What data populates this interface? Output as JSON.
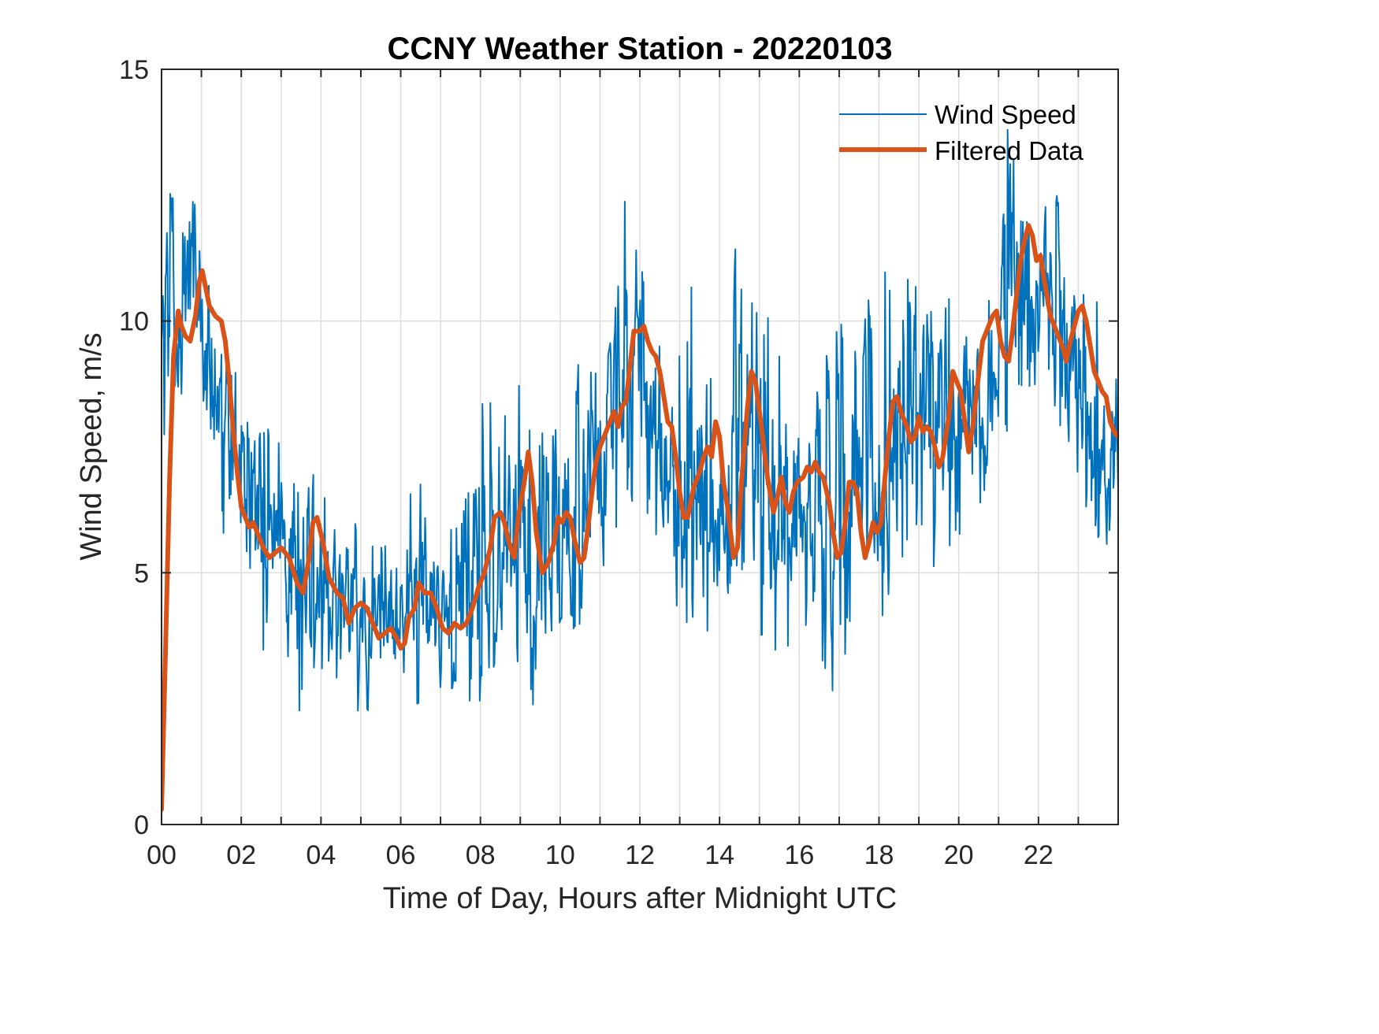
{
  "chart_data": {
    "type": "line",
    "title": "CCNY Weather Station - 20220103",
    "xlabel": "Time of Day, Hours after Midnight UTC",
    "ylabel": "Wind Speed, m/s",
    "xlim": [
      0,
      24
    ],
    "ylim": [
      0,
      15
    ],
    "xticks": [
      0,
      2,
      4,
      6,
      8,
      10,
      12,
      14,
      16,
      18,
      20,
      22
    ],
    "xtick_labels": [
      "00",
      "02",
      "04",
      "06",
      "08",
      "10",
      "12",
      "14",
      "16",
      "18",
      "20",
      "22"
    ],
    "x_minor_grid_hours": [
      1,
      3,
      5,
      7,
      9,
      11,
      13,
      15,
      17,
      19,
      21,
      23
    ],
    "yticks": [
      0,
      5,
      10,
      15
    ],
    "ytick_labels": [
      "0",
      "5",
      "10",
      "15"
    ],
    "grid": true,
    "box": true,
    "legend": {
      "placement": "top-right",
      "boxed": false
    },
    "series": [
      {
        "name": "Wind Speed",
        "color": "#0072BD",
        "style": "thin",
        "x_step_hours": 0.0167,
        "envelope": [
          {
            "x": 0.0,
            "lo": 7.0,
            "hi": 11.8
          },
          {
            "x": 0.2,
            "lo": 8.5,
            "hi": 13.1
          },
          {
            "x": 0.5,
            "lo": 6.8,
            "hi": 12.5
          },
          {
            "x": 0.9,
            "lo": 8.5,
            "hi": 13.4
          },
          {
            "x": 1.3,
            "lo": 7.5,
            "hi": 11.6
          },
          {
            "x": 1.6,
            "lo": 5.2,
            "hi": 10.2
          },
          {
            "x": 2.0,
            "lo": 4.2,
            "hi": 8.5
          },
          {
            "x": 2.5,
            "lo": 3.4,
            "hi": 8.0
          },
          {
            "x": 3.0,
            "lo": 3.5,
            "hi": 7.6
          },
          {
            "x": 3.4,
            "lo": 1.5,
            "hi": 7.0
          },
          {
            "x": 3.7,
            "lo": 3.0,
            "hi": 7.9
          },
          {
            "x": 4.2,
            "lo": 3.0,
            "hi": 6.5
          },
          {
            "x": 4.7,
            "lo": 2.7,
            "hi": 6.4
          },
          {
            "x": 5.1,
            "lo": 1.9,
            "hi": 6.0
          },
          {
            "x": 5.6,
            "lo": 2.3,
            "hi": 5.9
          },
          {
            "x": 6.0,
            "lo": 2.4,
            "hi": 6.3
          },
          {
            "x": 6.5,
            "lo": 2.4,
            "hi": 6.9
          },
          {
            "x": 7.0,
            "lo": 2.3,
            "hi": 5.8
          },
          {
            "x": 7.5,
            "lo": 2.5,
            "hi": 6.0
          },
          {
            "x": 8.0,
            "lo": 2.1,
            "hi": 8.8
          },
          {
            "x": 8.5,
            "lo": 3.0,
            "hi": 8.2
          },
          {
            "x": 9.0,
            "lo": 3.2,
            "hi": 9.3
          },
          {
            "x": 9.4,
            "lo": 2.1,
            "hi": 8.1
          },
          {
            "x": 9.8,
            "lo": 3.5,
            "hi": 7.8
          },
          {
            "x": 10.3,
            "lo": 3.4,
            "hi": 9.0
          },
          {
            "x": 10.8,
            "lo": 4.3,
            "hi": 9.5
          },
          {
            "x": 11.3,
            "lo": 5.0,
            "hi": 10.1
          },
          {
            "x": 11.6,
            "lo": 6.0,
            "hi": 12.6
          },
          {
            "x": 12.0,
            "lo": 6.8,
            "hi": 11.2
          },
          {
            "x": 12.4,
            "lo": 5.5,
            "hi": 10.4
          },
          {
            "x": 12.9,
            "lo": 3.0,
            "hi": 9.0
          },
          {
            "x": 13.3,
            "lo": 3.5,
            "hi": 10.8
          },
          {
            "x": 13.8,
            "lo": 3.0,
            "hi": 9.2
          },
          {
            "x": 14.2,
            "lo": 2.8,
            "hi": 8.8
          },
          {
            "x": 14.4,
            "lo": 4.0,
            "hi": 12.2
          },
          {
            "x": 14.8,
            "lo": 4.5,
            "hi": 11.0
          },
          {
            "x": 15.2,
            "lo": 2.9,
            "hi": 10.2
          },
          {
            "x": 15.7,
            "lo": 3.5,
            "hi": 9.0
          },
          {
            "x": 16.2,
            "lo": 3.4,
            "hi": 9.5
          },
          {
            "x": 16.7,
            "lo": 2.4,
            "hi": 9.8
          },
          {
            "x": 17.1,
            "lo": 3.0,
            "hi": 10.3
          },
          {
            "x": 17.5,
            "lo": 4.2,
            "hi": 10.0
          },
          {
            "x": 18.0,
            "lo": 3.9,
            "hi": 11.0
          },
          {
            "x": 18.5,
            "lo": 4.5,
            "hi": 10.9
          },
          {
            "x": 19.0,
            "lo": 5.5,
            "hi": 10.9
          },
          {
            "x": 19.5,
            "lo": 4.7,
            "hi": 10.9
          },
          {
            "x": 19.9,
            "lo": 5.5,
            "hi": 11.0
          },
          {
            "x": 20.4,
            "lo": 5.8,
            "hi": 11.1
          },
          {
            "x": 20.9,
            "lo": 6.0,
            "hi": 11.8
          },
          {
            "x": 21.3,
            "lo": 8.0,
            "hi": 14.5
          },
          {
            "x": 21.7,
            "lo": 8.5,
            "hi": 13.9
          },
          {
            "x": 22.1,
            "lo": 7.5,
            "hi": 12.7
          },
          {
            "x": 22.6,
            "lo": 7.5,
            "hi": 12.9
          },
          {
            "x": 23.0,
            "lo": 6.5,
            "hi": 11.2
          },
          {
            "x": 23.5,
            "lo": 5.4,
            "hi": 10.4
          },
          {
            "x": 24.0,
            "lo": 5.5,
            "hi": 9.2
          }
        ]
      },
      {
        "name": "Filtered Data",
        "color": "#D95319",
        "style": "thick",
        "points": [
          [
            0.0,
            0.3
          ],
          [
            0.1,
            3.5
          ],
          [
            0.2,
            6.8
          ],
          [
            0.3,
            9.3
          ],
          [
            0.42,
            10.2
          ],
          [
            0.5,
            9.9
          ],
          [
            0.6,
            9.7
          ],
          [
            0.72,
            9.6
          ],
          [
            0.85,
            10.1
          ],
          [
            0.95,
            10.8
          ],
          [
            1.02,
            11.0
          ],
          [
            1.1,
            10.7
          ],
          [
            1.2,
            10.3
          ],
          [
            1.35,
            10.1
          ],
          [
            1.5,
            10.0
          ],
          [
            1.6,
            9.6
          ],
          [
            1.7,
            8.8
          ],
          [
            1.8,
            7.8
          ],
          [
            1.9,
            7.0
          ],
          [
            2.0,
            6.3
          ],
          [
            2.1,
            6.1
          ],
          [
            2.2,
            5.9
          ],
          [
            2.3,
            6.0
          ],
          [
            2.4,
            5.8
          ],
          [
            2.55,
            5.5
          ],
          [
            2.7,
            5.3
          ],
          [
            2.85,
            5.4
          ],
          [
            3.0,
            5.5
          ],
          [
            3.2,
            5.3
          ],
          [
            3.4,
            4.8
          ],
          [
            3.55,
            4.6
          ],
          [
            3.7,
            5.3
          ],
          [
            3.8,
            6.0
          ],
          [
            3.9,
            6.1
          ],
          [
            4.05,
            5.6
          ],
          [
            4.2,
            4.9
          ],
          [
            4.4,
            4.6
          ],
          [
            4.55,
            4.5
          ],
          [
            4.7,
            4.0
          ],
          [
            4.85,
            4.3
          ],
          [
            5.0,
            4.4
          ],
          [
            5.15,
            4.3
          ],
          [
            5.3,
            4.0
          ],
          [
            5.45,
            3.7
          ],
          [
            5.6,
            3.8
          ],
          [
            5.75,
            3.9
          ],
          [
            5.9,
            3.7
          ],
          [
            6.0,
            3.5
          ],
          [
            6.1,
            3.6
          ],
          [
            6.2,
            4.1
          ],
          [
            6.35,
            4.3
          ],
          [
            6.45,
            4.8
          ],
          [
            6.6,
            4.6
          ],
          [
            6.75,
            4.6
          ],
          [
            6.9,
            4.3
          ],
          [
            7.05,
            3.9
          ],
          [
            7.2,
            3.8
          ],
          [
            7.35,
            4.0
          ],
          [
            7.5,
            3.9
          ],
          [
            7.65,
            4.0
          ],
          [
            7.8,
            4.3
          ],
          [
            7.95,
            4.7
          ],
          [
            8.1,
            5.0
          ],
          [
            8.25,
            5.5
          ],
          [
            8.35,
            6.1
          ],
          [
            8.5,
            6.2
          ],
          [
            8.6,
            6.0
          ],
          [
            8.75,
            5.5
          ],
          [
            8.85,
            5.3
          ],
          [
            8.95,
            6.1
          ],
          [
            9.1,
            6.8
          ],
          [
            9.2,
            7.4
          ],
          [
            9.3,
            6.8
          ],
          [
            9.4,
            5.8
          ],
          [
            9.55,
            5.0
          ],
          [
            9.7,
            5.2
          ],
          [
            9.85,
            5.6
          ],
          [
            9.95,
            6.1
          ],
          [
            10.05,
            6.0
          ],
          [
            10.15,
            6.2
          ],
          [
            10.25,
            6.1
          ],
          [
            10.35,
            5.7
          ],
          [
            10.5,
            5.2
          ],
          [
            10.6,
            5.3
          ],
          [
            10.7,
            5.9
          ],
          [
            10.8,
            6.6
          ],
          [
            10.9,
            7.2
          ],
          [
            11.0,
            7.5
          ],
          [
            11.1,
            7.7
          ],
          [
            11.25,
            8.0
          ],
          [
            11.35,
            8.2
          ],
          [
            11.45,
            7.9
          ],
          [
            11.55,
            8.3
          ],
          [
            11.65,
            8.4
          ],
          [
            11.75,
            9.1
          ],
          [
            11.85,
            9.8
          ],
          [
            12.0,
            9.8
          ],
          [
            12.1,
            9.9
          ],
          [
            12.2,
            9.6
          ],
          [
            12.3,
            9.4
          ],
          [
            12.4,
            9.3
          ],
          [
            12.5,
            9.0
          ],
          [
            12.6,
            8.5
          ],
          [
            12.7,
            8.0
          ],
          [
            12.8,
            7.9
          ],
          [
            12.9,
            7.3
          ],
          [
            13.0,
            6.6
          ],
          [
            13.1,
            6.1
          ],
          [
            13.2,
            6.1
          ],
          [
            13.35,
            6.7
          ],
          [
            13.5,
            7.0
          ],
          [
            13.6,
            7.3
          ],
          [
            13.7,
            7.5
          ],
          [
            13.8,
            7.3
          ],
          [
            13.9,
            8.0
          ],
          [
            14.0,
            7.7
          ],
          [
            14.1,
            6.8
          ],
          [
            14.2,
            6.3
          ],
          [
            14.35,
            5.3
          ],
          [
            14.45,
            5.5
          ],
          [
            14.55,
            6.8
          ],
          [
            14.7,
            8.3
          ],
          [
            14.8,
            9.0
          ],
          [
            14.9,
            8.8
          ],
          [
            15.05,
            7.9
          ],
          [
            15.2,
            6.9
          ],
          [
            15.35,
            6.2
          ],
          [
            15.45,
            6.5
          ],
          [
            15.55,
            6.9
          ],
          [
            15.65,
            6.4
          ],
          [
            15.75,
            6.2
          ],
          [
            15.85,
            6.6
          ],
          [
            15.95,
            6.8
          ],
          [
            16.1,
            6.9
          ],
          [
            16.2,
            7.1
          ],
          [
            16.3,
            7.0
          ],
          [
            16.4,
            7.2
          ],
          [
            16.5,
            7.0
          ],
          [
            16.6,
            6.9
          ],
          [
            16.75,
            6.4
          ],
          [
            16.85,
            5.8
          ],
          [
            16.95,
            5.3
          ],
          [
            17.05,
            5.4
          ],
          [
            17.15,
            6.0
          ],
          [
            17.25,
            6.8
          ],
          [
            17.35,
            6.8
          ],
          [
            17.45,
            6.6
          ],
          [
            17.55,
            5.8
          ],
          [
            17.65,
            5.3
          ],
          [
            17.75,
            5.6
          ],
          [
            17.85,
            6.0
          ],
          [
            17.95,
            5.8
          ],
          [
            18.05,
            6.0
          ],
          [
            18.15,
            6.9
          ],
          [
            18.25,
            7.7
          ],
          [
            18.35,
            8.4
          ],
          [
            18.45,
            8.5
          ],
          [
            18.55,
            8.2
          ],
          [
            18.7,
            7.9
          ],
          [
            18.8,
            7.6
          ],
          [
            18.9,
            7.7
          ],
          [
            19.0,
            8.1
          ],
          [
            19.1,
            7.8
          ],
          [
            19.2,
            7.9
          ],
          [
            19.3,
            7.8
          ],
          [
            19.4,
            7.5
          ],
          [
            19.5,
            7.1
          ],
          [
            19.6,
            7.3
          ],
          [
            19.75,
            8.1
          ],
          [
            19.85,
            9.0
          ],
          [
            19.95,
            8.8
          ],
          [
            20.05,
            8.6
          ],
          [
            20.15,
            8.0
          ],
          [
            20.25,
            7.4
          ],
          [
            20.35,
            7.9
          ],
          [
            20.45,
            8.6
          ],
          [
            20.6,
            9.6
          ],
          [
            20.75,
            9.9
          ],
          [
            20.85,
            10.1
          ],
          [
            20.95,
            10.2
          ],
          [
            21.05,
            9.6
          ],
          [
            21.15,
            9.3
          ],
          [
            21.25,
            9.2
          ],
          [
            21.35,
            9.8
          ],
          [
            21.45,
            10.5
          ],
          [
            21.55,
            11.2
          ],
          [
            21.65,
            11.6
          ],
          [
            21.75,
            11.9
          ],
          [
            21.85,
            11.7
          ],
          [
            21.95,
            11.2
          ],
          [
            22.05,
            11.3
          ],
          [
            22.15,
            10.8
          ],
          [
            22.3,
            10.1
          ],
          [
            22.4,
            9.9
          ],
          [
            22.5,
            9.7
          ],
          [
            22.6,
            9.5
          ],
          [
            22.7,
            9.2
          ],
          [
            22.8,
            9.6
          ],
          [
            22.9,
            9.9
          ],
          [
            23.0,
            10.2
          ],
          [
            23.1,
            10.3
          ],
          [
            23.2,
            10.0
          ],
          [
            23.3,
            9.5
          ],
          [
            23.4,
            9.0
          ],
          [
            23.5,
            8.8
          ],
          [
            23.6,
            8.6
          ],
          [
            23.7,
            8.5
          ],
          [
            23.8,
            8.0
          ],
          [
            23.9,
            7.8
          ],
          [
            24.0,
            7.7
          ]
        ]
      }
    ]
  },
  "legend": {
    "items": [
      {
        "label": "Wind Speed",
        "color": "#0072BD"
      },
      {
        "label": "Filtered Data",
        "color": "#D95319"
      }
    ]
  },
  "colors": {
    "axis": "#262626",
    "grid": "#dfdfdf",
    "raw": "#0072BD",
    "filtered": "#D95319"
  }
}
